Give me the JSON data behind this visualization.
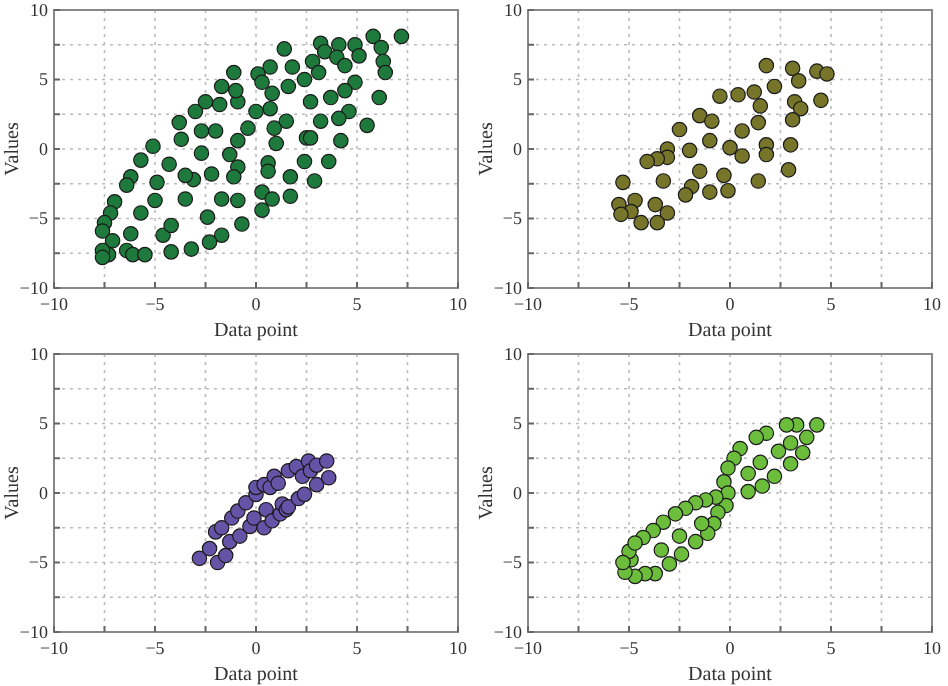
{
  "chart_data": [
    {
      "type": "scatter",
      "xlabel": "Data point",
      "ylabel": "Values",
      "xlim": [
        -10,
        10
      ],
      "ylim": [
        -10,
        10
      ],
      "xticks": [
        -10,
        {
          "value": -7.5,
          "label": null
        },
        -5,
        {
          "value": -2.5,
          "label": null
        },
        0,
        {
          "value": 2.5,
          "label": null
        },
        5,
        {
          "value": 7.5,
          "label": null
        },
        10
      ],
      "yticks": [
        -10,
        {
          "value": -7.5,
          "label": null
        },
        -5,
        {
          "value": -2.5,
          "label": null
        },
        0,
        {
          "value": 2.5,
          "label": null
        },
        5,
        {
          "value": 7.5,
          "label": null
        },
        10
      ],
      "grid": true,
      "marker": "circle",
      "series": [
        {
          "color": "#1e7a3c",
          "x": [
            7.2,
            5.8,
            4.9,
            6.2,
            4.1,
            3.2,
            3.4,
            4.0,
            5.1,
            6.3,
            4.4,
            6.4,
            1.4,
            2.8,
            3.1,
            1.8,
            0.7,
            0.1,
            0.3,
            2.4,
            4.9,
            4.4,
            1.6,
            0.8,
            2.7,
            3.7,
            6.1,
            4.6,
            3.2,
            4.1,
            5.5,
            1.5,
            0.7,
            0,
            0.9,
            1.0,
            2.5,
            2.7,
            4.2,
            3.6,
            2.4,
            2.9,
            1.7,
            0.6,
            0.6,
            0.3,
            0.8,
            0.3,
            1.7,
            -0.7,
            -0.9,
            -0.9,
            -1.1,
            -1.3,
            -0.9,
            -0.4,
            -0.9,
            -1.0,
            -1.1,
            -1.7,
            -1.8,
            -2.0,
            -2.7,
            -2.7,
            -2.2,
            -3.1,
            -3.5,
            -3.5,
            -1.7,
            -2.4,
            -1.7,
            -2.3,
            -3.2,
            -4.2,
            -4.6,
            -4.2,
            -5.0,
            -4.9,
            -4.3,
            -3.7,
            -3.8,
            -3.0,
            -2.5,
            -5.1,
            -5.7,
            -6.2,
            -6.4,
            -5.7,
            -6.2,
            -6.4,
            -6.1,
            -5.5,
            -7.0,
            -7.2,
            -7.5,
            -7.6,
            -7.1,
            -7.3,
            -7.6,
            -7.6
          ],
          "values": [
            8.1,
            8.1,
            7.5,
            7.3,
            7.5,
            7.6,
            7.0,
            6.6,
            6.7,
            6.3,
            6.0,
            5.5,
            7.2,
            6.3,
            5.5,
            5.9,
            5.9,
            5.4,
            4.8,
            5.0,
            4.8,
            4.2,
            4.5,
            4.0,
            3.4,
            3.7,
            3.7,
            2.7,
            2.0,
            2.2,
            1.7,
            2.0,
            2.9,
            2.7,
            1.5,
            0.4,
            0.8,
            0.8,
            0.6,
            -0.9,
            -0.9,
            -2.3,
            -2.0,
            -1.0,
            -1.6,
            -3.1,
            -3.6,
            -4.4,
            -3.4,
            -5.4,
            -3.7,
            -1.3,
            -2.0,
            -0.4,
            0.6,
            1.5,
            3.4,
            4.2,
            5.5,
            4.5,
            3.2,
            1.3,
            1.3,
            -0.3,
            -1.8,
            -2.2,
            -1.9,
            -3.6,
            -3.6,
            -4.9,
            -6.2,
            -6.7,
            -7.2,
            -7.4,
            -6.2,
            -5.5,
            -3.7,
            -2.4,
            -1.1,
            0.7,
            1.9,
            2.7,
            3.4,
            0.2,
            -0.8,
            -2.0,
            -2.6,
            -4.6,
            -6.1,
            -7.3,
            -7.6,
            -7.6,
            -3.8,
            -4.6,
            -5.3,
            -5.9,
            -6.6,
            -7.6,
            -7.3,
            -7.8
          ]
        }
      ]
    },
    {
      "type": "scatter",
      "xlabel": "Data point",
      "ylabel": "Values",
      "xlim": [
        -10,
        10
      ],
      "ylim": [
        -10,
        10
      ],
      "xticks": [
        -10,
        {
          "value": -7.5,
          "label": null
        },
        -5,
        {
          "value": -2.5,
          "label": null
        },
        0,
        {
          "value": 2.5,
          "label": null
        },
        5,
        {
          "value": 7.5,
          "label": null
        },
        10
      ],
      "yticks": [
        -10,
        {
          "value": -7.5,
          "label": null
        },
        -5,
        {
          "value": -2.5,
          "label": null
        },
        0,
        {
          "value": 2.5,
          "label": null
        },
        5,
        {
          "value": 7.5,
          "label": null
        },
        10
      ],
      "grid": true,
      "marker": "circle",
      "series": [
        {
          "color": "#76752a",
          "x": [
            1.8,
            3.1,
            4.3,
            4.8,
            3.4,
            2.2,
            1.2,
            0.4,
            -0.5,
            4.5,
            3.2,
            3.5,
            1.5,
            3.1,
            1.4,
            0.6,
            -1.5,
            -0.9,
            -2.5,
            -1.0,
            0,
            1.8,
            3.0,
            1.8,
            0.6,
            -3.1,
            -2.0,
            -3.1,
            -3.6,
            -4.1,
            2.9,
            1.4,
            -0.3,
            -1.5,
            -3.3,
            -5.3,
            -1.9,
            -2.2,
            -1.0,
            -0.1,
            -4.7,
            -3.7,
            -5.5,
            -4.9,
            -5.4,
            -3.1,
            -4.4,
            -3.6
          ],
          "values": [
            6.0,
            5.8,
            5.6,
            5.4,
            4.9,
            4.5,
            4.1,
            3.9,
            3.8,
            3.5,
            3.4,
            2.9,
            3.1,
            2.1,
            1.9,
            1.3,
            2.4,
            2.0,
            1.4,
            0.6,
            0.1,
            0.3,
            0.3,
            -0.4,
            -0.5,
            0,
            -0.1,
            -0.6,
            -0.7,
            -0.9,
            -1.5,
            -2.3,
            -1.9,
            -1.6,
            -2.3,
            -2.4,
            -2.7,
            -3.3,
            -3.1,
            -3.0,
            -3.7,
            -4.0,
            -4.0,
            -4.5,
            -4.7,
            -4.6,
            -5.3,
            -5.3
          ]
        }
      ]
    },
    {
      "type": "scatter",
      "xlabel": "Data point",
      "ylabel": "Values",
      "xlim": [
        -10,
        10
      ],
      "ylim": [
        -10,
        10
      ],
      "xticks": [
        -10,
        {
          "value": -7.5,
          "label": null
        },
        -5,
        {
          "value": -2.5,
          "label": null
        },
        0,
        {
          "value": 2.5,
          "label": null
        },
        5,
        {
          "value": 7.5,
          "label": null
        },
        10
      ],
      "yticks": [
        -10,
        {
          "value": -7.5,
          "label": null
        },
        -5,
        {
          "value": -2.5,
          "label": null
        },
        0,
        {
          "value": 2.5,
          "label": null
        },
        5,
        {
          "value": 7.5,
          "label": null
        },
        10
      ],
      "grid": true,
      "marker": "circle",
      "series": [
        {
          "color": "#6454a8",
          "x": [
            -2.8,
            -2.3,
            -2.0,
            -1.7,
            -1.2,
            -0.9,
            -0.5,
            0,
            0,
            0.4,
            0.7,
            0.9,
            1.1,
            1.6,
            2.0,
            2.3,
            2.6,
            2.7,
            3.0,
            3.5,
            -1.9,
            -1.5,
            -1.3,
            -0.8,
            -0.3,
            -0.1,
            0.4,
            0.5,
            0.8,
            1.2,
            1.3,
            1.5,
            1.6,
            2.1,
            2.4,
            3.0,
            3.6
          ],
          "values": [
            -4.7,
            -4.0,
            -2.8,
            -2.5,
            -1.8,
            -1.3,
            -0.7,
            -0.1,
            0.4,
            0.6,
            0.4,
            1.2,
            0.7,
            1.6,
            1.9,
            1.2,
            2.3,
            1.6,
            2.0,
            2.3,
            -5.0,
            -4.5,
            -3.5,
            -3.1,
            -2.4,
            -1.8,
            -2.5,
            -1.2,
            -2.0,
            -1.5,
            -0.8,
            -1.2,
            -1.0,
            -0.4,
            -0.1,
            0.6,
            1.1
          ]
        }
      ]
    },
    {
      "type": "scatter",
      "xlabel": "Data point",
      "ylabel": "Values",
      "xlim": [
        -10,
        10
      ],
      "ylim": [
        -10,
        10
      ],
      "xticks": [
        -10,
        {
          "value": -7.5,
          "label": null
        },
        -5,
        {
          "value": -2.5,
          "label": null
        },
        0,
        {
          "value": 2.5,
          "label": null
        },
        5,
        {
          "value": 7.5,
          "label": null
        },
        10
      ],
      "yticks": [
        -10,
        {
          "value": -7.5,
          "label": null
        },
        -5,
        {
          "value": -2.5,
          "label": null
        },
        0,
        {
          "value": 2.5,
          "label": null
        },
        5,
        {
          "value": 7.5,
          "label": null
        },
        10
      ],
      "grid": true,
      "marker": "circle",
      "series": [
        {
          "color": "#6cbd3c",
          "x": [
            4.3,
            3.3,
            2.8,
            3.8,
            3.0,
            3.6,
            3.0,
            2.4,
            2.2,
            1.5,
            1.6,
            0.9,
            0.9,
            1.8,
            1.3,
            0.5,
            0.2,
            -0.1,
            -0.3,
            -0.1,
            -0.2,
            -0.7,
            -0.6,
            -0.8,
            -1.2,
            -1.1,
            -1.4,
            -1.7,
            -1.7,
            -2.2,
            -2.4,
            -2.5,
            -2.7,
            -3.0,
            -3.3,
            -3.4,
            -3.8,
            -4.3,
            -3.7,
            -4.2,
            -4.9,
            -4.7,
            -5.2,
            -5.0,
            -4.7,
            -5.3
          ],
          "values": [
            4.9,
            4.9,
            4.9,
            4.0,
            3.6,
            2.9,
            2.1,
            3.0,
            1.2,
            2.2,
            0.5,
            0.1,
            1.4,
            4.3,
            4.0,
            3.2,
            2.5,
            1.8,
            0.8,
            0,
            -0.9,
            -0.3,
            -1.4,
            -2.2,
            -0.5,
            -2.9,
            -2.2,
            -0.7,
            -3.5,
            -1.1,
            -4.4,
            -3.1,
            -1.5,
            -5.1,
            -2.1,
            -4.1,
            -2.7,
            -3.2,
            -5.8,
            -5.8,
            -4.8,
            -6.0,
            -5.7,
            -4.2,
            -3.6,
            -5.0
          ]
        }
      ]
    }
  ]
}
